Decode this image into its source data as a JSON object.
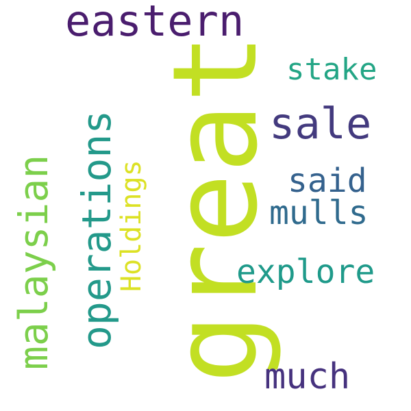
{
  "words": {
    "great": {
      "text": "great",
      "color": "#c2df23"
    },
    "eastern": {
      "text": "eastern",
      "color": "#4a1d6e"
    },
    "operations": {
      "text": "operations",
      "color": "#23998a"
    },
    "malaysian": {
      "text": "malaysian",
      "color": "#7ccf4b"
    },
    "sale": {
      "text": "sale",
      "color": "#433a7e"
    },
    "holdings": {
      "text": "Holdings",
      "color": "#dce124"
    },
    "stake": {
      "text": "stake",
      "color": "#23a585"
    },
    "said": {
      "text": "said",
      "color": "#34618d"
    },
    "mulls": {
      "text": "mulls",
      "color": "#2f6a8d"
    },
    "explore": {
      "text": "explore",
      "color": "#1f9a8a"
    },
    "much": {
      "text": "much",
      "color": "#46327e"
    }
  }
}
